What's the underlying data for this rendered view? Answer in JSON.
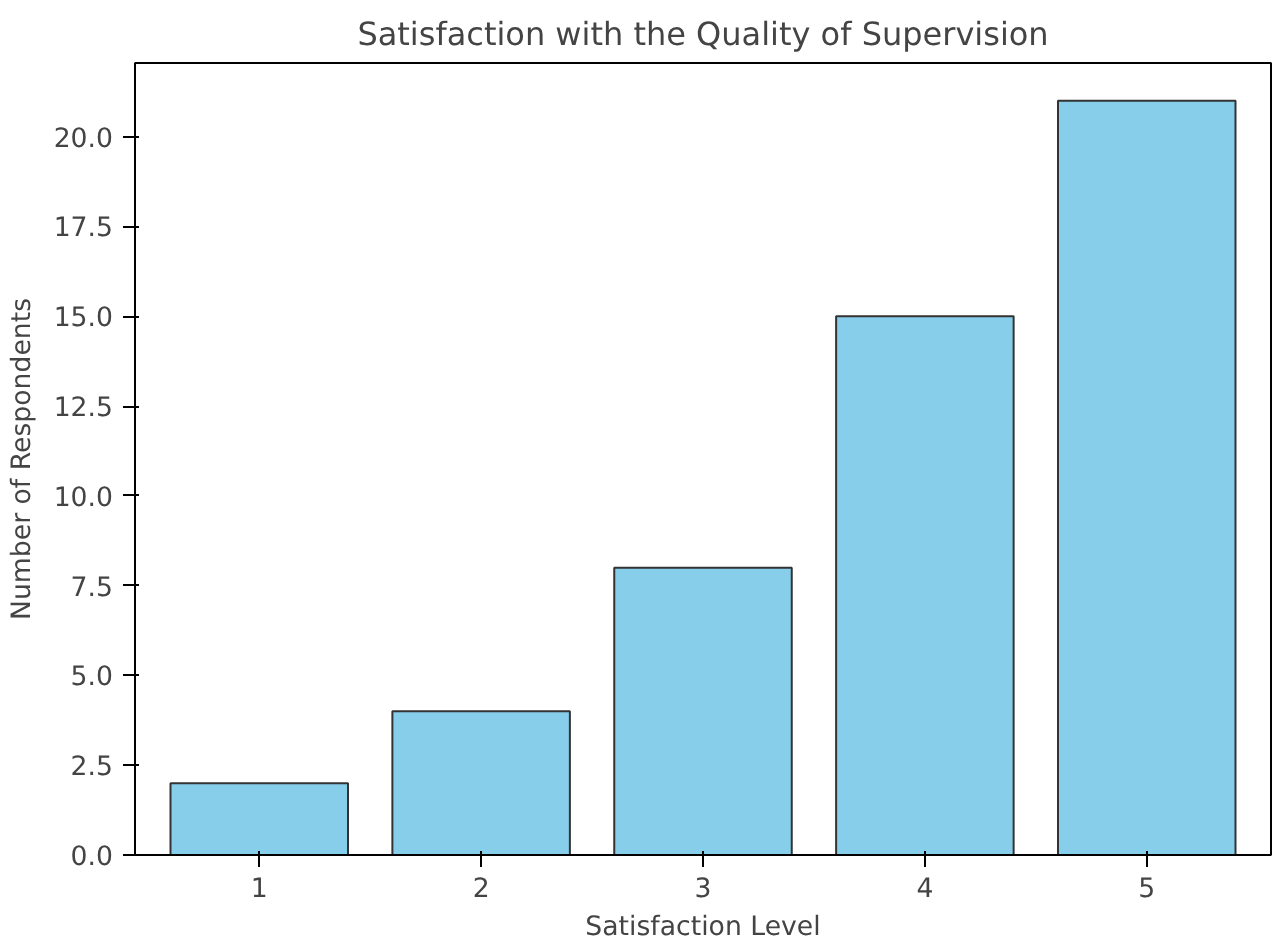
{
  "chart_data": {
    "type": "bar",
    "title": "Satisfaction with the Quality of Supervision",
    "xlabel": "Satisfaction Level",
    "ylabel": "Number of Respondents",
    "categories": [
      "1",
      "2",
      "3",
      "4",
      "5"
    ],
    "values": [
      2,
      4,
      8,
      15,
      21
    ],
    "color": "#87ceeb",
    "ylim": [
      0,
      22.05
    ],
    "yticks": [
      {
        "value": 0,
        "label": "0.0"
      },
      {
        "value": 2.5,
        "label": "2.5"
      },
      {
        "value": 5,
        "label": "5.0"
      },
      {
        "value": 7.5,
        "label": "7.5"
      },
      {
        "value": 10,
        "label": "10.0"
      },
      {
        "value": 12.5,
        "label": "12.5"
      },
      {
        "value": 15,
        "label": "15.0"
      },
      {
        "value": 17.5,
        "label": "17.5"
      },
      {
        "value": 20,
        "label": "20.0"
      }
    ],
    "grid": false
  }
}
